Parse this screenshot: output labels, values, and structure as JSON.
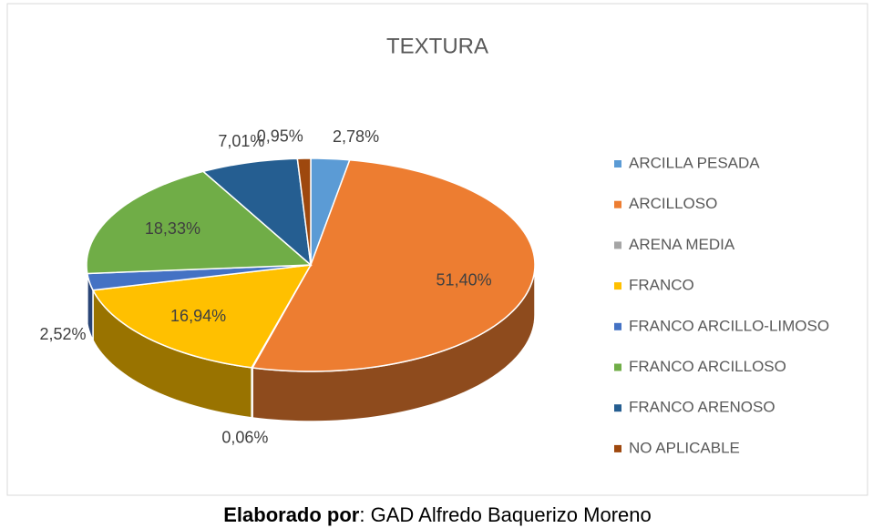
{
  "chart_data": {
    "type": "pie3d",
    "title": "TEXTURA",
    "categories": [
      "ARCILLA PESADA",
      "ARCILLOSO",
      "ARENA MEDIA",
      "FRANCO",
      "FRANCO ARCILLO-LIMOSO",
      "FRANCO ARCILLOSO",
      "FRANCO ARENOSO",
      "NO APLICABLE"
    ],
    "values": [
      2.78,
      51.4,
      0.06,
      16.94,
      2.52,
      18.33,
      7.01,
      0.95
    ],
    "value_labels": [
      "2,78%",
      "51,40%",
      "0,06%",
      "16,94%",
      "2,52%",
      "18,33%",
      "7,01%",
      "0,95%"
    ],
    "colors": [
      "#5b9bd5",
      "#ed7d31",
      "#a5a5a5",
      "#ffc000",
      "#4472c4",
      "#70ad47",
      "#255e91",
      "#9e480e"
    ],
    "legend": "right"
  },
  "footer": {
    "label": "Elaborado por",
    "text": ": GAD Alfredo Baquerizo Moreno"
  }
}
